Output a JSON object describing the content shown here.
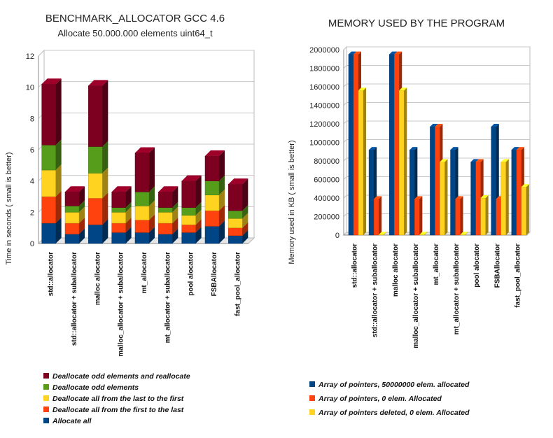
{
  "chart_data": [
    {
      "type": "bar",
      "stacked": true,
      "title": "BENCHMARK_ALLOCATOR GCC 4.6",
      "subtitle": "Allocate 50.000.000 elements uint64_t",
      "xlabel": "",
      "ylabel": "Time in seconds ( small is better)",
      "ylim": [
        0,
        12
      ],
      "yticks": [
        "0",
        "2",
        "4",
        "6",
        "8",
        "10",
        "12"
      ],
      "grid": true,
      "legend_position": "bottom-left",
      "categories": [
        "std::allocator",
        "std::allocator + suballocator",
        "malloc allocator",
        "malloc_allocator + suballocator",
        "mt_allocator",
        "mt_allocator + suballocator",
        "pool alocator",
        "FSBAllocator",
        "fast_pool_allocator"
      ],
      "series": [
        {
          "name": "Allocate all",
          "color": "#004586",
          "values": [
            1.3,
            0.6,
            1.2,
            0.7,
            0.7,
            0.6,
            0.7,
            1.1,
            0.5
          ]
        },
        {
          "name": "Deallocate all from the first to the last",
          "color": "#ff420e",
          "values": [
            1.7,
            0.7,
            1.7,
            0.6,
            0.8,
            0.7,
            0.5,
            1.0,
            0.5
          ]
        },
        {
          "name": "Deallocate all from the last to the first",
          "color": "#ffd320",
          "values": [
            1.7,
            0.7,
            1.6,
            0.7,
            0.9,
            0.7,
            0.6,
            1.0,
            0.6
          ]
        },
        {
          "name": "Deallocate odd elements",
          "color": "#579d1c",
          "values": [
            1.6,
            0.4,
            1.7,
            0.3,
            0.9,
            0.3,
            0.5,
            0.9,
            0.5
          ]
        },
        {
          "name": "Deallocate odd elements and reallocate",
          "color": "#7e0021",
          "values": [
            3.9,
            0.9,
            3.9,
            1.0,
            2.5,
            1.0,
            1.7,
            1.6,
            1.7
          ]
        }
      ]
    },
    {
      "type": "bar",
      "stacked": false,
      "title": "MEMORY USED BY THE PROGRAM",
      "xlabel": "",
      "ylabel": "Memory used in KB ( small is better)",
      "ylim": [
        0,
        2000000
      ],
      "yticks": [
        "0",
        "200000",
        "400000",
        "600000",
        "800000",
        "1000000",
        "1200000",
        "1400000",
        "1600000",
        "1800000",
        "2000000"
      ],
      "grid": true,
      "legend_position": "bottom",
      "categories": [
        "std::allocator",
        "std::allocator + suballocator",
        "malloc allocator",
        "malloc_allocator + suballocator",
        "mt_allocator",
        "mt_allocator + suballocator",
        "pool alocator",
        "FSBAllocator",
        "fast_pool_allocator"
      ],
      "series": [
        {
          "name": "Array of pointers, 50000000 elem. allocated",
          "color": "#004586",
          "values": [
            1950000,
            920000,
            1950000,
            920000,
            1170000,
            920000,
            790000,
            1170000,
            920000
          ]
        },
        {
          "name": "Array of pointers, 0 elem. Allocated",
          "color": "#ff420e",
          "values": [
            1950000,
            390000,
            1950000,
            390000,
            1170000,
            390000,
            790000,
            390000,
            920000
          ]
        },
        {
          "name": "Array of pointers deleted, 0 elem. Allocated",
          "color": "#ffd320",
          "values": [
            1560000,
            5000,
            1560000,
            5000,
            790000,
            5000,
            400000,
            790000,
            520000
          ]
        }
      ]
    }
  ]
}
